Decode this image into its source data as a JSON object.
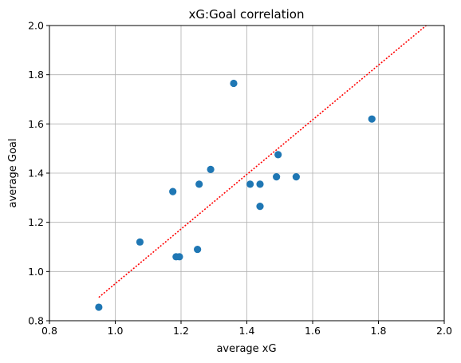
{
  "chart_data": {
    "type": "scatter",
    "title": "xG:Goal correlation",
    "xlabel": "average xG",
    "ylabel": "average Goal",
    "xlim": [
      0.8,
      2.0
    ],
    "ylim": [
      0.8,
      2.0
    ],
    "grid": true,
    "xticks": [
      "0.8",
      "1.0",
      "1.2",
      "1.4",
      "1.6",
      "1.8",
      "2.0"
    ],
    "yticks": [
      "0.8",
      "1.0",
      "1.2",
      "1.4",
      "1.6",
      "1.8",
      "2.0"
    ],
    "series": [
      {
        "kind": "points",
        "color": "#1f77b4",
        "points": [
          {
            "x": 0.95,
            "y": 0.855
          },
          {
            "x": 1.075,
            "y": 1.12
          },
          {
            "x": 1.175,
            "y": 1.325
          },
          {
            "x": 1.185,
            "y": 1.06
          },
          {
            "x": 1.195,
            "y": 1.06
          },
          {
            "x": 1.25,
            "y": 1.09
          },
          {
            "x": 1.255,
            "y": 1.355
          },
          {
            "x": 1.29,
            "y": 1.415
          },
          {
            "x": 1.36,
            "y": 1.765
          },
          {
            "x": 1.41,
            "y": 1.355
          },
          {
            "x": 1.44,
            "y": 1.355
          },
          {
            "x": 1.44,
            "y": 1.265
          },
          {
            "x": 1.49,
            "y": 1.385
          },
          {
            "x": 1.495,
            "y": 1.475
          },
          {
            "x": 1.55,
            "y": 1.385
          },
          {
            "x": 1.78,
            "y": 1.62
          }
        ]
      },
      {
        "kind": "trendline",
        "color": "#ff0000",
        "style": "dotted",
        "from": {
          "x": 0.95,
          "y": 0.895
        },
        "to": {
          "x": 1.945,
          "y": 2.0
        }
      }
    ]
  }
}
